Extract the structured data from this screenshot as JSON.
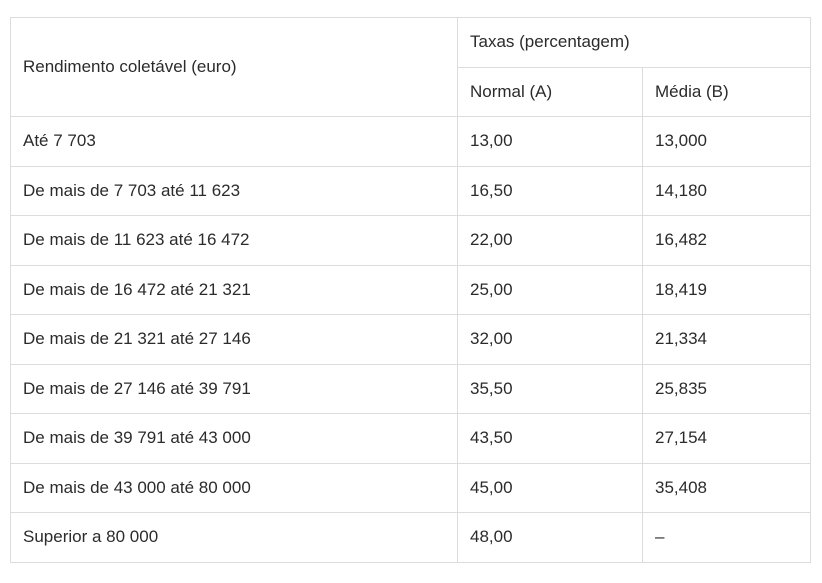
{
  "table": {
    "header": {
      "rendimento": "Rendimento coletável (euro)",
      "taxas": "Taxas (percentagem)",
      "normal": "Normal (A)",
      "media": "Média (B)"
    },
    "rows": [
      {
        "bracket": "Até 7 703",
        "normal": "13,00",
        "media": "13,000"
      },
      {
        "bracket": "De mais de 7 703 até 11 623",
        "normal": "16,50",
        "media": "14,180"
      },
      {
        "bracket": "De mais de 11 623 até 16 472",
        "normal": "22,00",
        "media": "16,482"
      },
      {
        "bracket": "De mais de 16 472 até 21 321",
        "normal": "25,00",
        "media": "18,419"
      },
      {
        "bracket": "De mais de 21 321 até 27 146",
        "normal": "32,00",
        "media": "21,334"
      },
      {
        "bracket": "De mais de 27 146 até 39 791",
        "normal": "35,50",
        "media": "25,835"
      },
      {
        "bracket": "De mais de 39 791 até 43 000",
        "normal": "43,50",
        "media": "27,154"
      },
      {
        "bracket": "De mais de 43 000 até 80 000",
        "normal": "45,00",
        "media": "35,408"
      },
      {
        "bracket": "Superior a 80 000",
        "normal": "48,00",
        "media": "–"
      }
    ]
  }
}
